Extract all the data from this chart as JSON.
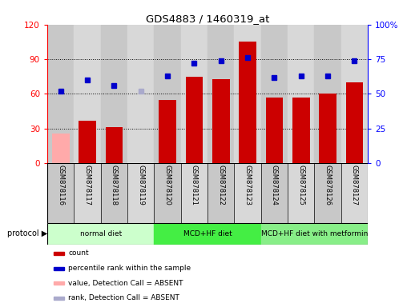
{
  "title": "GDS4883 / 1460319_at",
  "samples": [
    "GSM878116",
    "GSM878117",
    "GSM878118",
    "GSM878119",
    "GSM878120",
    "GSM878121",
    "GSM878122",
    "GSM878123",
    "GSM878124",
    "GSM878125",
    "GSM878126",
    "GSM878127"
  ],
  "count_values": [
    26,
    37,
    31,
    0,
    55,
    75,
    73,
    105,
    57,
    57,
    60,
    70
  ],
  "count_absent": [
    true,
    false,
    false,
    true,
    false,
    false,
    false,
    false,
    false,
    false,
    false,
    false
  ],
  "percentile_values": [
    52,
    60,
    56,
    52,
    63,
    72,
    74,
    76,
    62,
    63,
    63,
    74
  ],
  "percentile_absent": [
    false,
    false,
    false,
    true,
    false,
    false,
    false,
    false,
    false,
    false,
    false,
    false
  ],
  "bar_color_present": "#cc0000",
  "bar_color_absent": "#ffaaaa",
  "dot_color_present": "#0000cc",
  "dot_color_absent": "#aaaacc",
  "ylim_left": [
    0,
    120
  ],
  "ylim_right": [
    0,
    100
  ],
  "yticks_left": [
    0,
    30,
    60,
    90,
    120
  ],
  "yticks_right": [
    0,
    25,
    50,
    75,
    100
  ],
  "ytick_labels_right": [
    "0",
    "25",
    "50",
    "75",
    "100%"
  ],
  "protocols": [
    {
      "label": "normal diet",
      "start": 0,
      "end": 4,
      "color": "#ccffcc"
    },
    {
      "label": "MCD+HF diet",
      "start": 4,
      "end": 8,
      "color": "#44ee44"
    },
    {
      "label": "MCD+HF diet with metformin",
      "start": 8,
      "end": 12,
      "color": "#88ee88"
    }
  ],
  "legend_items": [
    {
      "label": "count",
      "color": "#cc0000"
    },
    {
      "label": "percentile rank within the sample",
      "color": "#0000cc"
    },
    {
      "label": "value, Detection Call = ABSENT",
      "color": "#ffaaaa"
    },
    {
      "label": "rank, Detection Call = ABSENT",
      "color": "#aaaacc"
    }
  ],
  "protocol_label": "protocol",
  "col_bg_even": "#c8c8c8",
  "col_bg_odd": "#d8d8d8",
  "background_color": "#ffffff"
}
